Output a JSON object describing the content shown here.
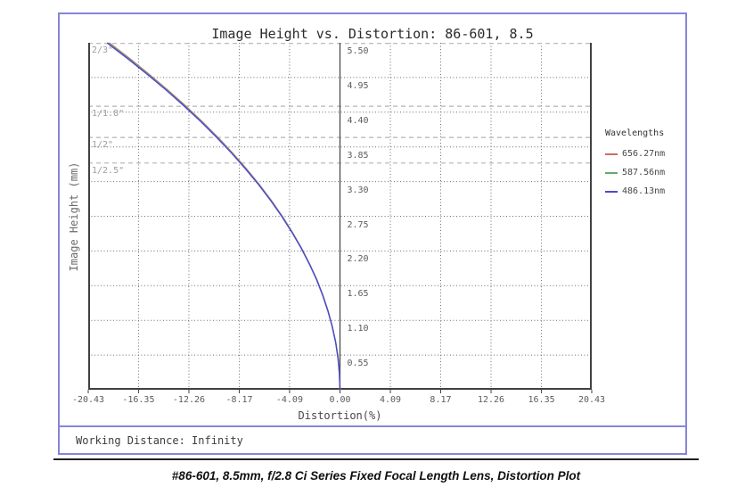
{
  "figure": {
    "working_distance": "Working Distance: Infinity",
    "caption": "#86-601, 8.5mm, f/2.8 Ci Series Fixed Focal Length Lens, Distortion Plot",
    "border_color": "#8585da"
  },
  "chart_data": {
    "type": "line",
    "title": "Image Height vs. Distortion: 86-601, 8.5",
    "xlabel": "Distortion(%)",
    "ylabel": "Image Height (mm)",
    "xlim": [
      -20.43,
      20.43
    ],
    "ylim": [
      0,
      5.5
    ],
    "grid": true,
    "x_ticks": [
      {
        "value": -20.43,
        "label": "-20.43"
      },
      {
        "value": -16.35,
        "label": "-16.35"
      },
      {
        "value": -12.26,
        "label": "-12.26"
      },
      {
        "value": -8.17,
        "label": "-8.17"
      },
      {
        "value": -4.09,
        "label": "-4.09"
      },
      {
        "value": 0.0,
        "label": "0.00"
      },
      {
        "value": 4.09,
        "label": "4.09"
      },
      {
        "value": 8.17,
        "label": "8.17"
      },
      {
        "value": 12.26,
        "label": "12.26"
      },
      {
        "value": 16.35,
        "label": "16.35"
      },
      {
        "value": 20.43,
        "label": "20.43"
      }
    ],
    "y_ticks": [
      {
        "value": 5.5,
        "label": "5.50"
      },
      {
        "value": 4.95,
        "label": "4.95"
      },
      {
        "value": 4.4,
        "label": "4.40"
      },
      {
        "value": 3.85,
        "label": "3.85"
      },
      {
        "value": 3.3,
        "label": "3.30"
      },
      {
        "value": 2.75,
        "label": "2.75"
      },
      {
        "value": 2.2,
        "label": "2.20"
      },
      {
        "value": 1.65,
        "label": "1.65"
      },
      {
        "value": 1.1,
        "label": "1.10"
      },
      {
        "value": 0.55,
        "label": "0.55"
      }
    ],
    "sensor_format_lines": [
      {
        "label": "2/3\"",
        "height_mm": 5.5
      },
      {
        "label": "1/1.8\"",
        "height_mm": 4.494
      },
      {
        "label": "1/2\"",
        "height_mm": 4.0
      },
      {
        "label": "1/2.5\"",
        "height_mm": 3.594
      }
    ],
    "legend_title": "Wavelengths",
    "legend_position": "right",
    "series": [
      {
        "name": "656.27nm",
        "color": "#cd6969",
        "points": [
          [
            -18.72,
            5.5
          ],
          [
            -17.06,
            5.25
          ],
          [
            -15.48,
            5.0
          ],
          [
            -13.97,
            4.75
          ],
          [
            -12.53,
            4.5
          ],
          [
            -11.18,
            4.25
          ],
          [
            -9.9,
            4.0
          ],
          [
            -8.7,
            3.75
          ],
          [
            -7.58,
            3.5
          ],
          [
            -6.54,
            3.25
          ],
          [
            -5.57,
            3.0
          ],
          [
            -4.68,
            2.75
          ],
          [
            -3.87,
            2.5
          ],
          [
            -3.13,
            2.25
          ],
          [
            -2.48,
            2.0
          ],
          [
            -1.89,
            1.75
          ],
          [
            -1.39,
            1.5
          ],
          [
            -0.97,
            1.25
          ],
          [
            -0.62,
            1.0
          ],
          [
            -0.35,
            0.75
          ],
          [
            -0.15,
            0.5
          ],
          [
            -0.04,
            0.25
          ],
          [
            0,
            0
          ]
        ]
      },
      {
        "name": "587.56nm",
        "color": "#6aa86a",
        "points": [
          [
            -18.82,
            5.5
          ],
          [
            -17.14,
            5.25
          ],
          [
            -15.55,
            5.0
          ],
          [
            -14.03,
            4.75
          ],
          [
            -12.6,
            4.5
          ],
          [
            -11.24,
            4.25
          ],
          [
            -9.95,
            4.0
          ],
          [
            -8.75,
            3.75
          ],
          [
            -7.62,
            3.5
          ],
          [
            -6.57,
            3.25
          ],
          [
            -5.6,
            3.0
          ],
          [
            -4.7,
            2.75
          ],
          [
            -3.89,
            2.5
          ],
          [
            -3.15,
            2.25
          ],
          [
            -2.49,
            2.0
          ],
          [
            -1.9,
            1.75
          ],
          [
            -1.4,
            1.5
          ],
          [
            -0.97,
            1.25
          ],
          [
            -0.62,
            1.0
          ],
          [
            -0.35,
            0.75
          ],
          [
            -0.16,
            0.5
          ],
          [
            -0.04,
            0.25
          ],
          [
            0,
            0
          ]
        ]
      },
      {
        "name": "486.13nm",
        "color": "#4949d2",
        "points": [
          [
            -18.91,
            5.5
          ],
          [
            -17.23,
            5.25
          ],
          [
            -15.63,
            5.0
          ],
          [
            -14.1,
            4.75
          ],
          [
            -12.66,
            4.5
          ],
          [
            -11.29,
            4.25
          ],
          [
            -10.0,
            4.0
          ],
          [
            -8.79,
            3.75
          ],
          [
            -7.66,
            3.5
          ],
          [
            -6.6,
            3.25
          ],
          [
            -5.63,
            3.0
          ],
          [
            -4.73,
            2.75
          ],
          [
            -3.91,
            2.5
          ],
          [
            -3.16,
            2.25
          ],
          [
            -2.5,
            2.0
          ],
          [
            -1.91,
            1.75
          ],
          [
            -1.41,
            1.5
          ],
          [
            -0.98,
            1.25
          ],
          [
            -0.63,
            1.0
          ],
          [
            -0.35,
            0.75
          ],
          [
            -0.16,
            0.5
          ],
          [
            -0.04,
            0.25
          ],
          [
            0,
            0
          ]
        ]
      }
    ]
  }
}
